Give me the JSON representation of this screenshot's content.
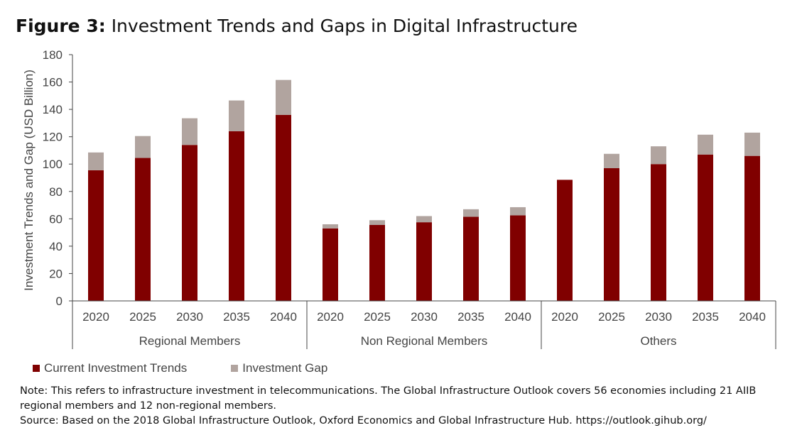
{
  "figure": {
    "label": "Figure 3",
    "separator": ":",
    "title": "Investment Trends and Gaps in Digital Infrastructure"
  },
  "colors": {
    "current": "#800000",
    "gap": "#b1a49f",
    "axis": "#444444"
  },
  "chart_data": {
    "type": "bar",
    "stacked": true,
    "ylabel": "Investment Trends and Gap (USD Billion)",
    "ylim": [
      0,
      180
    ],
    "yticks": [
      0,
      20,
      40,
      60,
      80,
      100,
      120,
      140,
      160,
      180
    ],
    "grid": false,
    "legend_position": "bottom-left",
    "groups": [
      {
        "name": "Regional Members",
        "categories": [
          "2020",
          "2025",
          "2030",
          "2035",
          "2040"
        ]
      },
      {
        "name": "Non Regional Members",
        "categories": [
          "2020",
          "2025",
          "2030",
          "2035",
          "2040"
        ]
      },
      {
        "name": "Others",
        "categories": [
          "2020",
          "2025",
          "2030",
          "2035",
          "2040"
        ]
      }
    ],
    "series": [
      {
        "name": "Current Investment Trends",
        "values": [
          95.5,
          104.5,
          114,
          124,
          136,
          53,
          55.5,
          57.5,
          61.5,
          62.5,
          88.5,
          97,
          100,
          107,
          106
        ]
      },
      {
        "name": "Investment Gap",
        "values": [
          13,
          16,
          19.5,
          22.5,
          25.5,
          3,
          3.5,
          4.5,
          5.5,
          6,
          0,
          10.5,
          13,
          14.5,
          17
        ]
      }
    ]
  },
  "notes": {
    "note": "Note: This refers to infrastructure investment in telecommunications. The Global Infrastructure Outlook covers 56 economies including 21 AIIB regional members and 12 non-regional members.",
    "source": "Source: Based on the 2018 Global Infrastructure Outlook, Oxford Economics and Global Infrastructure Hub. https://outlook.gihub.org/"
  }
}
